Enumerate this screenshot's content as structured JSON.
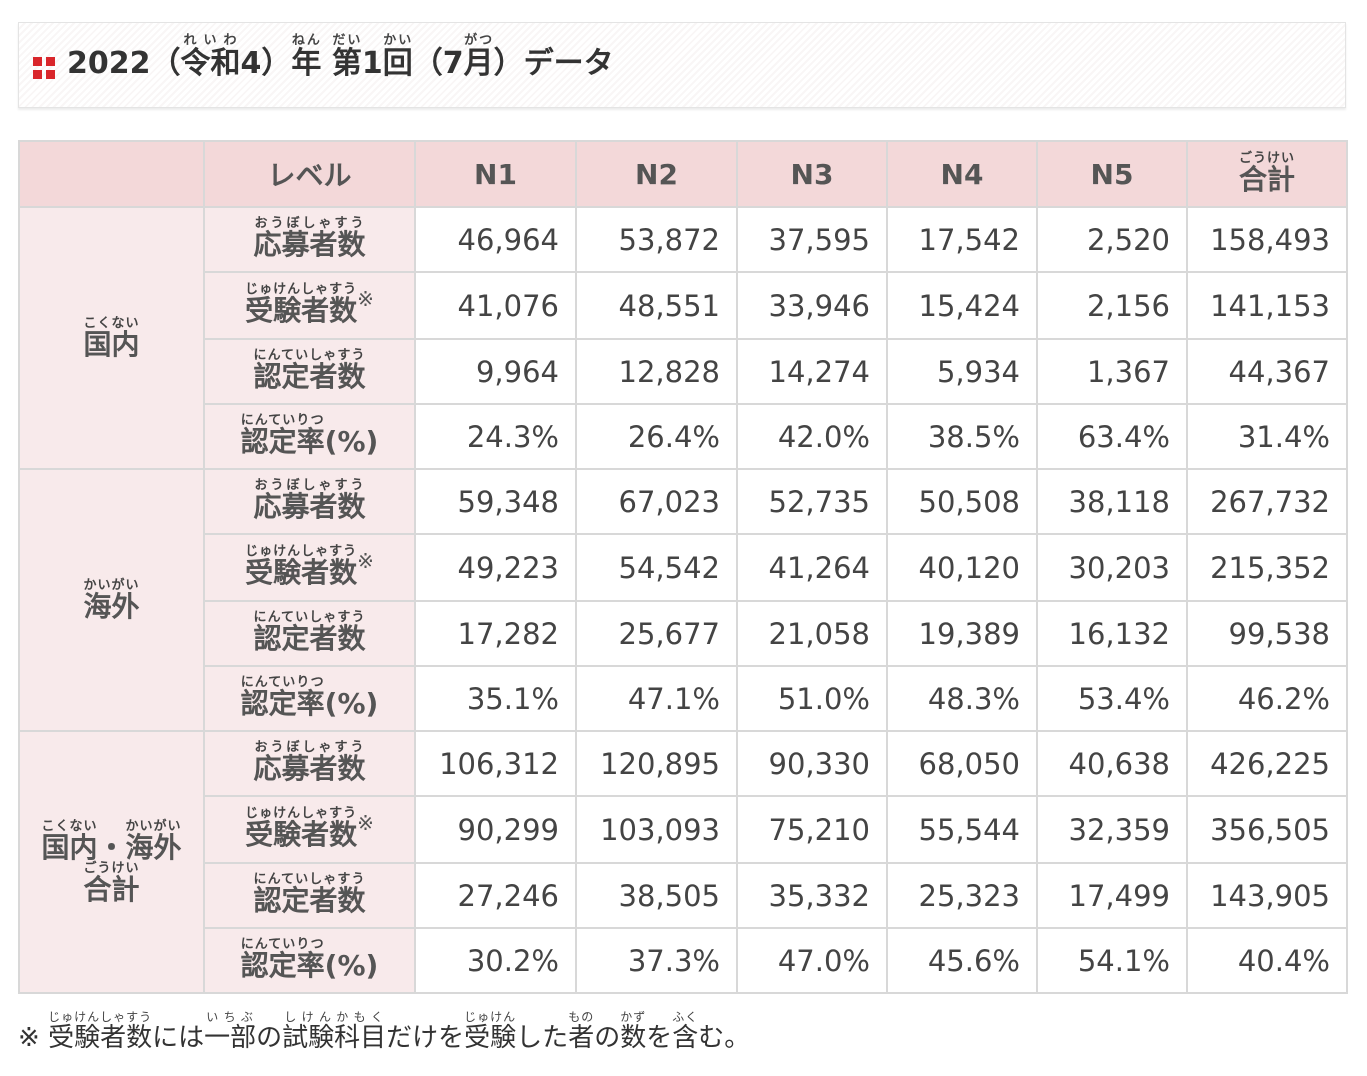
{
  "title": {
    "year": "2022",
    "open_paren": "（",
    "era": "令和",
    "era_reading": "れいわ",
    "era_year": "4",
    "close_paren": "）",
    "nen": "年",
    "nen_reading": "ねん",
    "dai": "第",
    "dai_reading": "だい",
    "session_no": "1",
    "kai": "回",
    "kai_reading": "かい",
    "open_paren2": "（",
    "month_no": "7",
    "gatsu": "月",
    "gatsu_reading": "がつ",
    "close_paren2": "）",
    "suffix": "データ"
  },
  "colors": {
    "accent_red": "#d9262b",
    "header_bg": "#f3d8d9",
    "label_bg": "#f8eaeb",
    "border": "#d8d8d8"
  },
  "table": {
    "header": {
      "level_label": "レベル",
      "levels": [
        "N1",
        "N2",
        "N3",
        "N4",
        "N5"
      ],
      "total": "合計",
      "total_reading": "ごうけい"
    },
    "metric_labels": {
      "applicants": {
        "text": "応募者数",
        "reading": "おうぼしゃすう"
      },
      "examinees": {
        "text": "受験者数",
        "reading": "じゅけんしゃすう",
        "mark": "※"
      },
      "certified": {
        "text": "認定者数",
        "reading": "にんていしゃすう"
      },
      "rate": {
        "text": "認定率",
        "reading": "にんていりつ",
        "suffix": "(%)"
      }
    },
    "regions": [
      {
        "label": "国内",
        "reading": "こくない",
        "rows": {
          "applicants": [
            "46,964",
            "53,872",
            "37,595",
            "17,542",
            "2,520",
            "158,493"
          ],
          "examinees": [
            "41,076",
            "48,551",
            "33,946",
            "15,424",
            "2,156",
            "141,153"
          ],
          "certified": [
            "9,964",
            "12,828",
            "14,274",
            "5,934",
            "1,367",
            "44,367"
          ],
          "rate": [
            "24.3%",
            "26.4%",
            "42.0%",
            "38.5%",
            "63.4%",
            "31.4%"
          ]
        }
      },
      {
        "label": "海外",
        "reading": "かいがい",
        "rows": {
          "applicants": [
            "59,348",
            "67,023",
            "52,735",
            "50,508",
            "38,118",
            "267,732"
          ],
          "examinees": [
            "49,223",
            "54,542",
            "41,264",
            "40,120",
            "30,203",
            "215,352"
          ],
          "certified": [
            "17,282",
            "25,677",
            "21,058",
            "19,389",
            "16,132",
            "99,538"
          ],
          "rate": [
            "35.1%",
            "47.1%",
            "51.0%",
            "48.3%",
            "53.4%",
            "46.2%"
          ]
        }
      },
      {
        "label_a": "国内",
        "reading_a": "こくない",
        "separator": "・",
        "label_b": "海外",
        "reading_b": "かいがい",
        "label_c": "合計",
        "reading_c": "ごうけい",
        "rows": {
          "applicants": [
            "106,312",
            "120,895",
            "90,330",
            "68,050",
            "40,638",
            "426,225"
          ],
          "examinees": [
            "90,299",
            "103,093",
            "75,210",
            "55,544",
            "32,359",
            "356,505"
          ],
          "certified": [
            "27,246",
            "38,505",
            "35,332",
            "25,323",
            "17,499",
            "143,905"
          ],
          "rate": [
            "30.2%",
            "37.3%",
            "47.0%",
            "45.6%",
            "54.1%",
            "40.4%"
          ]
        }
      }
    ]
  },
  "footnote": {
    "mark": "※",
    "p1": {
      "text": "受験者数",
      "reading": "じゅけんしゃすう"
    },
    "p2": "には",
    "p3": {
      "text": "一部",
      "reading": "いちぶ"
    },
    "p4": "の",
    "p5": {
      "text": "試験科目",
      "reading": "しけんかもく"
    },
    "p6": "だけを",
    "p7": {
      "text": "受験",
      "reading": "じゅけん"
    },
    "p8": "した",
    "p9": {
      "text": "者",
      "reading": "もの"
    },
    "p10": "の",
    "p11": {
      "text": "数",
      "reading": "かず"
    },
    "p12": "を",
    "p13": {
      "text": "含",
      "reading": "ふく"
    },
    "p14": "む。"
  }
}
